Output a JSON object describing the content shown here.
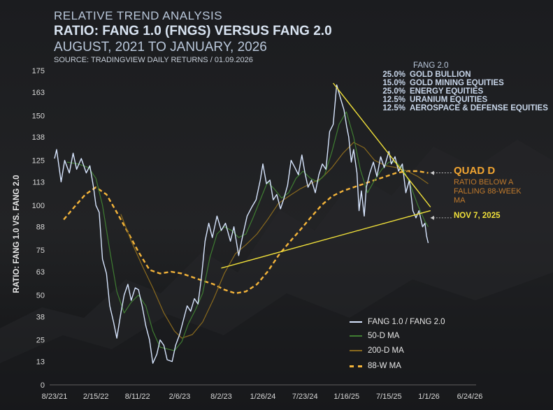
{
  "header": {
    "kicker": "RELATIVE TREND ANALYSIS",
    "title": "RATIO: FANG 1.0 (FNGS) VERSUS FANG 2.0",
    "subtitle": "AUGUST, 2021 TO JANUARY, 2026",
    "source": "SOURCE: TRADINGVIEW DAILY RETURNS / 01.09.2026"
  },
  "composition": {
    "heading": "FANG 2.0",
    "items": [
      {
        "weight": "25.0%",
        "name": "GOLD BULLION"
      },
      {
        "weight": "15.0%",
        "name": "GOLD MINING EQUITIES"
      },
      {
        "weight": "25.0%",
        "name": "ENERGY EQUITIES"
      },
      {
        "weight": "12.5%",
        "name": "URANIUM EQUITIES"
      },
      {
        "weight": "12.5%",
        "name": "AEROSPACE & DEFENSE EQUITIES"
      }
    ]
  },
  "annotations": {
    "quad_title": "QUAD D",
    "quad_sub": "RATIO BELOW A FALLING 88-WEEK MA",
    "nov_label": "NOV 7, 2025"
  },
  "colors": {
    "ratio": "#d8e6ff",
    "ma50": "#3f7d32",
    "ma200": "#8a6a1e",
    "ma88w": "#f4b43a",
    "trendline": "#f0e03a",
    "quad": "#f2a531"
  },
  "chart_data": {
    "type": "line",
    "ylabel": "RATIO: FANG 1.0 VS. FANG 2.0",
    "xlabel": "",
    "xlim": [
      "2021-08-23",
      "2026-06-24"
    ],
    "ylim": [
      0,
      175
    ],
    "yticks": [
      0,
      13,
      25,
      38,
      50,
      63,
      75,
      88,
      100,
      113,
      125,
      138,
      150,
      163,
      175
    ],
    "xticks": [
      "8/23/21",
      "2/15/22",
      "8/11/22",
      "2/6/23",
      "8/2/23",
      "1/26/24",
      "7/23/24",
      "1/16/25",
      "7/15/25",
      "1/1/26",
      "6/24/26"
    ],
    "grid": false,
    "legend_position": "bottom-right",
    "series": [
      {
        "name": "FANG 1.0 / FANG 2.0",
        "style": "solid",
        "points": [
          [
            "2021-08-23",
            126
          ],
          [
            "2021-09-01",
            131
          ],
          [
            "2021-09-20",
            113
          ],
          [
            "2021-10-05",
            125
          ],
          [
            "2021-10-25",
            118
          ],
          [
            "2021-11-10",
            129
          ],
          [
            "2021-11-25",
            120
          ],
          [
            "2021-12-15",
            126
          ],
          [
            "2022-01-05",
            118
          ],
          [
            "2022-01-20",
            122
          ],
          [
            "2022-02-05",
            110
          ],
          [
            "2022-02-15",
            100
          ],
          [
            "2022-03-01",
            96
          ],
          [
            "2022-03-15",
            70
          ],
          [
            "2022-04-01",
            62
          ],
          [
            "2022-04-15",
            44
          ],
          [
            "2022-05-01",
            35
          ],
          [
            "2022-05-15",
            26
          ],
          [
            "2022-06-01",
            40
          ],
          [
            "2022-06-15",
            50
          ],
          [
            "2022-07-01",
            56
          ],
          [
            "2022-07-15",
            47
          ],
          [
            "2022-08-01",
            54
          ],
          [
            "2022-08-15",
            53
          ],
          [
            "2022-09-01",
            43
          ],
          [
            "2022-09-15",
            33
          ],
          [
            "2022-10-01",
            25
          ],
          [
            "2022-10-15",
            12
          ],
          [
            "2022-11-01",
            17
          ],
          [
            "2022-11-15",
            25
          ],
          [
            "2022-12-01",
            22
          ],
          [
            "2022-12-15",
            14
          ],
          [
            "2023-01-05",
            13
          ],
          [
            "2023-01-20",
            22
          ],
          [
            "2023-02-06",
            28
          ],
          [
            "2023-02-20",
            35
          ],
          [
            "2023-03-10",
            44
          ],
          [
            "2023-03-25",
            41
          ],
          [
            "2023-04-10",
            48
          ],
          [
            "2023-04-25",
            45
          ],
          [
            "2023-05-10",
            60
          ],
          [
            "2023-05-25",
            80
          ],
          [
            "2023-06-10",
            90
          ],
          [
            "2023-06-25",
            82
          ],
          [
            "2023-07-15",
            94
          ],
          [
            "2023-08-02",
            86
          ],
          [
            "2023-08-20",
            90
          ],
          [
            "2023-09-10",
            80
          ],
          [
            "2023-09-25",
            88
          ],
          [
            "2023-10-15",
            72
          ],
          [
            "2023-11-01",
            83
          ],
          [
            "2023-11-20",
            94
          ],
          [
            "2023-12-10",
            99
          ],
          [
            "2023-12-28",
            103
          ],
          [
            "2024-01-15",
            114
          ],
          [
            "2024-01-26",
            123
          ],
          [
            "2024-02-10",
            112
          ],
          [
            "2024-02-25",
            114
          ],
          [
            "2024-03-10",
            103
          ],
          [
            "2024-03-25",
            106
          ],
          [
            "2024-04-10",
            98
          ],
          [
            "2024-04-25",
            104
          ],
          [
            "2024-05-10",
            111
          ],
          [
            "2024-05-25",
            125
          ],
          [
            "2024-06-10",
            121
          ],
          [
            "2024-06-25",
            117
          ],
          [
            "2024-07-10",
            128
          ],
          [
            "2024-07-23",
            118
          ],
          [
            "2024-08-05",
            110
          ],
          [
            "2024-08-20",
            114
          ],
          [
            "2024-09-05",
            107
          ],
          [
            "2024-09-20",
            117
          ],
          [
            "2024-10-05",
            123
          ],
          [
            "2024-10-20",
            120
          ],
          [
            "2024-11-05",
            141
          ],
          [
            "2024-11-20",
            145
          ],
          [
            "2024-12-05",
            167
          ],
          [
            "2024-12-20",
            160
          ],
          [
            "2025-01-05",
            153
          ],
          [
            "2025-01-16",
            144
          ],
          [
            "2025-01-25",
            138
          ],
          [
            "2025-02-05",
            124
          ],
          [
            "2025-02-15",
            131
          ],
          [
            "2025-03-01",
            118
          ],
          [
            "2025-03-10",
            97
          ],
          [
            "2025-03-20",
            108
          ],
          [
            "2025-04-01",
            94
          ],
          [
            "2025-04-10",
            110
          ],
          [
            "2025-04-25",
            118
          ],
          [
            "2025-05-10",
            124
          ],
          [
            "2025-05-25",
            116
          ],
          [
            "2025-06-10",
            127
          ],
          [
            "2025-06-25",
            121
          ],
          [
            "2025-07-15",
            130
          ],
          [
            "2025-07-25",
            123
          ],
          [
            "2025-08-10",
            127
          ],
          [
            "2025-08-25",
            119
          ],
          [
            "2025-09-10",
            123
          ],
          [
            "2025-09-25",
            107
          ],
          [
            "2025-10-10",
            114
          ],
          [
            "2025-10-25",
            97
          ],
          [
            "2025-11-07",
            93
          ],
          [
            "2025-11-20",
            97
          ],
          [
            "2025-12-05",
            88
          ],
          [
            "2025-12-15",
            90
          ],
          [
            "2025-12-22",
            83
          ],
          [
            "2025-12-29",
            79
          ]
        ]
      },
      {
        "name": "50-D MA",
        "style": "solid",
        "points": [
          [
            "2021-10-15",
            124
          ],
          [
            "2021-12-01",
            123
          ],
          [
            "2022-01-15",
            121
          ],
          [
            "2022-02-15",
            115
          ],
          [
            "2022-03-15",
            100
          ],
          [
            "2022-04-15",
            75
          ],
          [
            "2022-05-15",
            52
          ],
          [
            "2022-06-15",
            40
          ],
          [
            "2022-07-15",
            46
          ],
          [
            "2022-08-15",
            50
          ],
          [
            "2022-09-15",
            44
          ],
          [
            "2022-10-15",
            30
          ],
          [
            "2022-11-15",
            21
          ],
          [
            "2022-12-15",
            20
          ],
          [
            "2023-01-15",
            19
          ],
          [
            "2023-02-15",
            24
          ],
          [
            "2023-03-15",
            34
          ],
          [
            "2023-04-15",
            42
          ],
          [
            "2023-05-15",
            51
          ],
          [
            "2023-06-15",
            71
          ],
          [
            "2023-07-15",
            84
          ],
          [
            "2023-08-15",
            88
          ],
          [
            "2023-09-15",
            86
          ],
          [
            "2023-10-15",
            82
          ],
          [
            "2023-11-15",
            84
          ],
          [
            "2023-12-15",
            93
          ],
          [
            "2024-01-15",
            103
          ],
          [
            "2024-02-15",
            113
          ],
          [
            "2024-03-15",
            109
          ],
          [
            "2024-04-15",
            104
          ],
          [
            "2024-05-15",
            107
          ],
          [
            "2024-06-15",
            115
          ],
          [
            "2024-07-15",
            119
          ],
          [
            "2024-08-15",
            115
          ],
          [
            "2024-09-15",
            113
          ],
          [
            "2024-10-15",
            117
          ],
          [
            "2024-11-15",
            130
          ],
          [
            "2024-12-15",
            145
          ],
          [
            "2025-01-15",
            152
          ],
          [
            "2025-02-15",
            138
          ],
          [
            "2025-03-15",
            120
          ],
          [
            "2025-04-15",
            107
          ],
          [
            "2025-05-15",
            114
          ],
          [
            "2025-06-15",
            120
          ],
          [
            "2025-07-15",
            124
          ],
          [
            "2025-08-15",
            124
          ],
          [
            "2025-09-15",
            120
          ],
          [
            "2025-10-15",
            111
          ],
          [
            "2025-11-15",
            100
          ],
          [
            "2025-12-15",
            91
          ],
          [
            "2025-12-29",
            88
          ]
        ]
      },
      {
        "name": "200-D MA",
        "style": "solid",
        "points": [
          [
            "2022-06-01",
            95
          ],
          [
            "2022-07-15",
            80
          ],
          [
            "2022-09-01",
            66
          ],
          [
            "2022-10-15",
            54
          ],
          [
            "2022-12-01",
            40
          ],
          [
            "2023-01-15",
            30
          ],
          [
            "2023-02-15",
            26
          ],
          [
            "2023-04-01",
            28
          ],
          [
            "2023-05-15",
            35
          ],
          [
            "2023-07-01",
            48
          ],
          [
            "2023-08-15",
            62
          ],
          [
            "2023-10-01",
            73
          ],
          [
            "2023-11-15",
            78
          ],
          [
            "2024-01-01",
            84
          ],
          [
            "2024-02-15",
            92
          ],
          [
            "2024-04-01",
            101
          ],
          [
            "2024-05-15",
            105
          ],
          [
            "2024-07-01",
            109
          ],
          [
            "2024-08-15",
            112
          ],
          [
            "2024-10-01",
            115
          ],
          [
            "2024-11-15",
            121
          ],
          [
            "2025-01-01",
            129
          ],
          [
            "2025-02-15",
            135
          ],
          [
            "2025-04-01",
            132
          ],
          [
            "2025-05-15",
            125
          ],
          [
            "2025-07-01",
            122
          ],
          [
            "2025-08-15",
            121
          ],
          [
            "2025-10-01",
            119
          ],
          [
            "2025-11-15",
            116
          ],
          [
            "2025-12-29",
            112
          ]
        ]
      },
      {
        "name": "88-W MA",
        "style": "dashed",
        "points": [
          [
            "2021-10-01",
            92
          ],
          [
            "2021-11-15",
            99
          ],
          [
            "2022-01-01",
            106
          ],
          [
            "2022-02-15",
            110
          ],
          [
            "2022-04-01",
            106
          ],
          [
            "2022-05-15",
            96
          ],
          [
            "2022-07-01",
            85
          ],
          [
            "2022-08-15",
            74
          ],
          [
            "2022-10-01",
            64
          ],
          [
            "2022-11-15",
            62
          ],
          [
            "2023-01-01",
            63
          ],
          [
            "2023-02-15",
            62
          ],
          [
            "2023-04-01",
            60
          ],
          [
            "2023-05-15",
            58
          ],
          [
            "2023-07-01",
            56
          ],
          [
            "2023-08-15",
            53
          ],
          [
            "2023-10-01",
            51
          ],
          [
            "2023-11-15",
            52
          ],
          [
            "2024-01-01",
            56
          ],
          [
            "2024-02-15",
            63
          ],
          [
            "2024-04-01",
            72
          ],
          [
            "2024-05-15",
            79
          ],
          [
            "2024-07-01",
            86
          ],
          [
            "2024-08-15",
            93
          ],
          [
            "2024-10-01",
            100
          ],
          [
            "2024-11-15",
            105
          ],
          [
            "2025-01-01",
            108
          ],
          [
            "2025-02-15",
            110
          ],
          [
            "2025-04-01",
            112
          ],
          [
            "2025-05-15",
            114
          ],
          [
            "2025-07-01",
            116
          ],
          [
            "2025-08-15",
            118
          ],
          [
            "2025-10-01",
            119
          ],
          [
            "2025-11-15",
            119
          ],
          [
            "2025-12-29",
            118
          ]
        ]
      }
    ],
    "trendlines": [
      {
        "name": "descending-resistance",
        "points": [
          [
            "2024-11-20",
            168
          ],
          [
            "2026-01-08",
            99
          ]
        ]
      },
      {
        "name": "ascending-support",
        "points": [
          [
            "2023-08-02",
            65
          ],
          [
            "2026-01-08",
            97
          ]
        ]
      }
    ],
    "markers": [
      {
        "name": "quad-d-marker",
        "date": "2026-01-08",
        "value": 118
      },
      {
        "name": "nov-7-marker",
        "date": "2026-01-08",
        "value": 93
      }
    ]
  }
}
